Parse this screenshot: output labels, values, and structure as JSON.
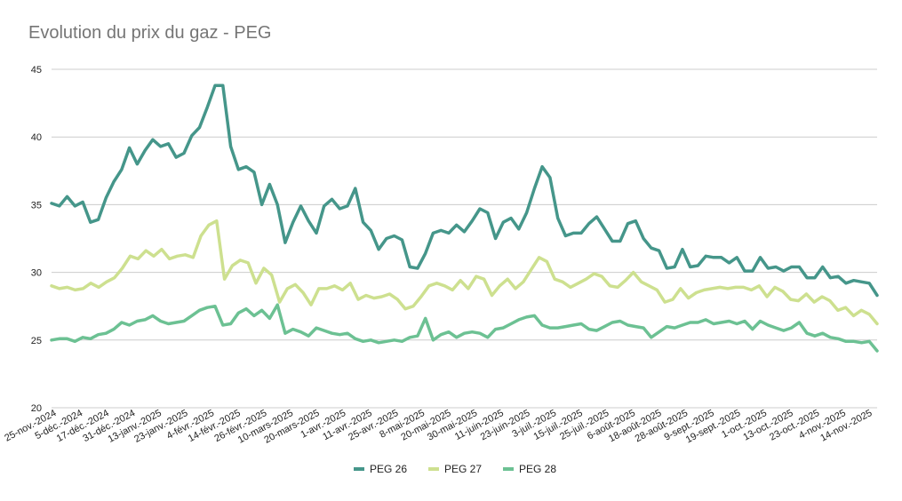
{
  "chart_data": {
    "type": "line",
    "title": "Evolution du prix du gaz - PEG",
    "xlabel": "",
    "ylabel": "",
    "ylim": [
      20,
      45
    ],
    "yticks": [
      20,
      25,
      30,
      35,
      40,
      45
    ],
    "grid": true,
    "legend_position": "bottom",
    "x_tick_labels": [
      "25-nov.-2024",
      "5-déc.-2024",
      "17-déc.-2024",
      "31-déc.-2024",
      "13-janv.-2025",
      "23-janv.-2025",
      "4-févr.-2025",
      "14-févr.-2025",
      "26-févr.-2025",
      "10-mars-2025",
      "20-mars-2025",
      "1-avr.-2025",
      "11-avr.-2025",
      "25-avr.-2025",
      "8-mai-2025",
      "20-mai-2025",
      "30-mai-2025",
      "11-juin-2025",
      "23-juin-2025",
      "3-juil.-2025",
      "15-juil.-2025",
      "25-juil.-2025",
      "6-août-2025",
      "18-août-2025",
      "28-août-2025",
      "9-sept.-2025",
      "19-sept.-2025",
      "1-oct.-2025",
      "13-oct.-2025",
      "23-oct.-2025",
      "4-nov.-2025",
      "14-nov.-2025"
    ],
    "series": [
      {
        "name": "PEG 26",
        "color": "#45968a",
        "values": [
          35.1,
          34.9,
          35.6,
          34.9,
          35.2,
          33.7,
          33.9,
          35.5,
          36.7,
          37.6,
          39.2,
          38.0,
          39.0,
          39.8,
          39.3,
          39.5,
          38.5,
          38.8,
          40.1,
          40.7,
          42.2,
          43.8,
          43.8,
          39.3,
          37.6,
          37.8,
          37.4,
          35.0,
          36.5,
          35.0,
          32.2,
          33.7,
          34.9,
          33.8,
          32.9,
          34.9,
          35.4,
          34.7,
          34.9,
          36.2,
          33.7,
          33.1,
          31.7,
          32.5,
          32.7,
          32.4,
          30.4,
          30.3,
          31.4,
          32.9,
          33.1,
          32.9,
          33.5,
          33.0,
          33.8,
          34.7,
          34.4,
          32.5,
          33.7,
          34.0,
          33.2,
          34.4,
          36.2,
          37.8,
          37.0,
          34.0,
          32.7,
          32.9,
          32.9,
          33.6,
          34.1,
          33.2,
          32.3,
          32.3,
          33.6,
          33.8,
          32.5,
          31.8,
          31.6,
          30.3,
          30.4,
          31.7,
          30.4,
          30.5,
          31.2,
          31.1,
          31.1,
          30.7,
          31.1,
          30.1,
          30.1,
          31.1,
          30.3,
          30.4,
          30.1,
          30.4,
          30.4,
          29.6,
          29.6,
          30.4,
          29.6,
          29.7,
          29.2,
          29.4,
          29.3,
          29.2,
          28.3
        ]
      },
      {
        "name": "PEG 27",
        "color": "#cde08f",
        "values": [
          29.0,
          28.8,
          28.9,
          28.7,
          28.8,
          29.2,
          28.9,
          29.3,
          29.6,
          30.3,
          31.2,
          31.0,
          31.6,
          31.2,
          31.7,
          31.0,
          31.2,
          31.3,
          31.1,
          32.7,
          33.5,
          33.8,
          29.5,
          30.5,
          30.9,
          30.7,
          29.2,
          30.3,
          29.8,
          27.8,
          28.8,
          29.1,
          28.5,
          27.6,
          28.8,
          28.8,
          29.0,
          28.7,
          29.2,
          28.0,
          28.3,
          28.1,
          28.2,
          28.4,
          28.0,
          27.3,
          27.5,
          28.2,
          29.0,
          29.2,
          29.0,
          28.7,
          29.4,
          28.8,
          29.7,
          29.5,
          28.3,
          29.0,
          29.5,
          28.8,
          29.3,
          30.2,
          31.1,
          30.8,
          29.5,
          29.3,
          28.9,
          29.2,
          29.5,
          29.9,
          29.7,
          29.0,
          28.9,
          29.4,
          30.0,
          29.3,
          29.0,
          28.7,
          27.8,
          28.0,
          28.8,
          28.1,
          28.5,
          28.7,
          28.8,
          28.9,
          28.8,
          28.9,
          28.9,
          28.7,
          29.0,
          28.2,
          28.9,
          28.6,
          28.0,
          27.9,
          28.4,
          27.8,
          28.2,
          27.9,
          27.2,
          27.4,
          26.8,
          27.2,
          26.9,
          26.2
        ]
      },
      {
        "name": "PEG 28",
        "color": "#6cc193",
        "values": [
          25.0,
          25.1,
          25.1,
          24.9,
          25.2,
          25.1,
          25.4,
          25.5,
          25.8,
          26.3,
          26.1,
          26.4,
          26.5,
          26.8,
          26.4,
          26.2,
          26.3,
          26.4,
          26.8,
          27.2,
          27.4,
          27.5,
          26.1,
          26.2,
          27.0,
          27.3,
          26.8,
          27.2,
          26.6,
          27.6,
          25.5,
          25.8,
          25.6,
          25.3,
          25.9,
          25.7,
          25.5,
          25.4,
          25.5,
          25.1,
          24.9,
          25.0,
          24.8,
          24.9,
          25.0,
          24.9,
          25.2,
          25.3,
          26.6,
          25.0,
          25.4,
          25.6,
          25.2,
          25.5,
          25.6,
          25.5,
          25.2,
          25.8,
          25.9,
          26.2,
          26.5,
          26.7,
          26.8,
          26.1,
          25.9,
          25.9,
          26.0,
          26.1,
          26.2,
          25.8,
          25.7,
          26.0,
          26.3,
          26.4,
          26.1,
          26.0,
          25.9,
          25.2,
          25.6,
          26.0,
          25.9,
          26.1,
          26.3,
          26.3,
          26.5,
          26.2,
          26.3,
          26.4,
          26.2,
          26.4,
          25.8,
          26.4,
          26.1,
          25.9,
          25.7,
          25.9,
          26.3,
          25.5,
          25.3,
          25.5,
          25.2,
          25.1,
          24.9,
          24.9,
          24.8,
          24.9,
          24.2
        ]
      }
    ]
  }
}
